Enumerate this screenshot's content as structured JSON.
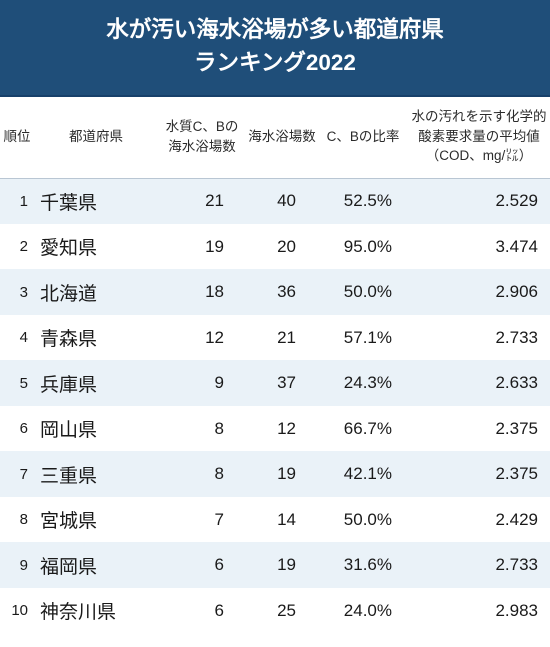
{
  "title_line1": "水が汚い海水浴場が多い都道府県",
  "title_line2": "ランキング2022",
  "colors": {
    "header_bg": "#1f4e79",
    "header_text": "#ffffff",
    "row_odd_bg": "#eaf2f8",
    "row_even_bg": "#ffffff",
    "thead_border": "#b9c6d3",
    "text": "#1a1a1a"
  },
  "columns": {
    "rank": "順位",
    "pref": "都道府県",
    "cb": "水質C、Bの海水浴場数",
    "total": "海水浴場数",
    "ratio": "C、Bの比率",
    "cod": "水の汚れを示す化学的酸素要求量の平均値（COD、mg/㍑）"
  },
  "rows": [
    {
      "rank": "1",
      "pref": "千葉県",
      "cb": "21",
      "total": "40",
      "ratio": "52.5%",
      "cod": "2.529"
    },
    {
      "rank": "2",
      "pref": "愛知県",
      "cb": "19",
      "total": "20",
      "ratio": "95.0%",
      "cod": "3.474"
    },
    {
      "rank": "3",
      "pref": "北海道",
      "cb": "18",
      "total": "36",
      "ratio": "50.0%",
      "cod": "2.906"
    },
    {
      "rank": "4",
      "pref": "青森県",
      "cb": "12",
      "total": "21",
      "ratio": "57.1%",
      "cod": "2.733"
    },
    {
      "rank": "5",
      "pref": "兵庫県",
      "cb": "9",
      "total": "37",
      "ratio": "24.3%",
      "cod": "2.633"
    },
    {
      "rank": "6",
      "pref": "岡山県",
      "cb": "8",
      "total": "12",
      "ratio": "66.7%",
      "cod": "2.375"
    },
    {
      "rank": "7",
      "pref": "三重県",
      "cb": "8",
      "total": "19",
      "ratio": "42.1%",
      "cod": "2.375"
    },
    {
      "rank": "8",
      "pref": "宮城県",
      "cb": "7",
      "total": "14",
      "ratio": "50.0%",
      "cod": "2.429"
    },
    {
      "rank": "9",
      "pref": "福岡県",
      "cb": "6",
      "total": "19",
      "ratio": "31.6%",
      "cod": "2.733"
    },
    {
      "rank": "10",
      "pref": "神奈川県",
      "cb": "6",
      "total": "25",
      "ratio": "24.0%",
      "cod": "2.983"
    }
  ]
}
